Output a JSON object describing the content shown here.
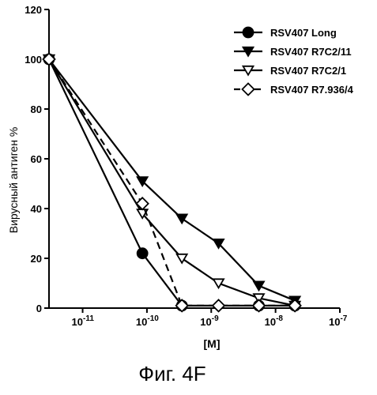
{
  "chart_data": {
    "type": "line",
    "xlabel": "[M]",
    "ylabel": "Вирусный антиген %",
    "x_scale": "log",
    "xlim": [
      3e-12,
      1e-07
    ],
    "ylim": [
      0,
      120
    ],
    "y_ticks": [
      "0",
      "20",
      "40",
      "60",
      "80",
      "100",
      "120"
    ],
    "x_ticks": [
      {
        "value": 1e-11,
        "base": "10",
        "exp": "-11"
      },
      {
        "value": 1e-10,
        "base": "10",
        "exp": "-10"
      },
      {
        "value": 1e-09,
        "base": "10",
        "exp": "-9"
      },
      {
        "value": 1e-08,
        "base": "10",
        "exp": "-8"
      },
      {
        "value": 1e-07,
        "base": "10",
        "exp": "-7"
      }
    ],
    "legend_position": "top-right",
    "series": [
      {
        "name": "RSV407 Long",
        "marker": "circle-filled",
        "line": "solid",
        "x": [
          3e-12,
          8.5e-11,
          3.5e-10,
          5.5e-09,
          2e-08
        ],
        "y": [
          100,
          22,
          1,
          1,
          1
        ]
      },
      {
        "name": "RSV407 R7C2/11",
        "marker": "triangle-down-filled",
        "line": "solid",
        "x": [
          3e-12,
          8.5e-11,
          3.5e-10,
          1.3e-09,
          5.5e-09,
          2e-08
        ],
        "y": [
          100,
          51,
          36,
          26,
          9,
          3
        ]
      },
      {
        "name": "RSV407 R7C2/1",
        "marker": "triangle-down-open",
        "line": "solid",
        "x": [
          3e-12,
          8.5e-11,
          3.5e-10,
          1.3e-09,
          5.5e-09,
          2e-08
        ],
        "y": [
          100,
          38,
          20,
          10,
          4,
          1
        ]
      },
      {
        "name": "RSV407 R7.936/4",
        "marker": "diamond-open",
        "line": "dashed",
        "x": [
          3e-12,
          8.5e-11,
          3.5e-10,
          1.3e-09,
          5.5e-09,
          2e-08
        ],
        "y": [
          100,
          42,
          1,
          1,
          1,
          1
        ]
      }
    ]
  },
  "caption": "Фиг. 4F"
}
